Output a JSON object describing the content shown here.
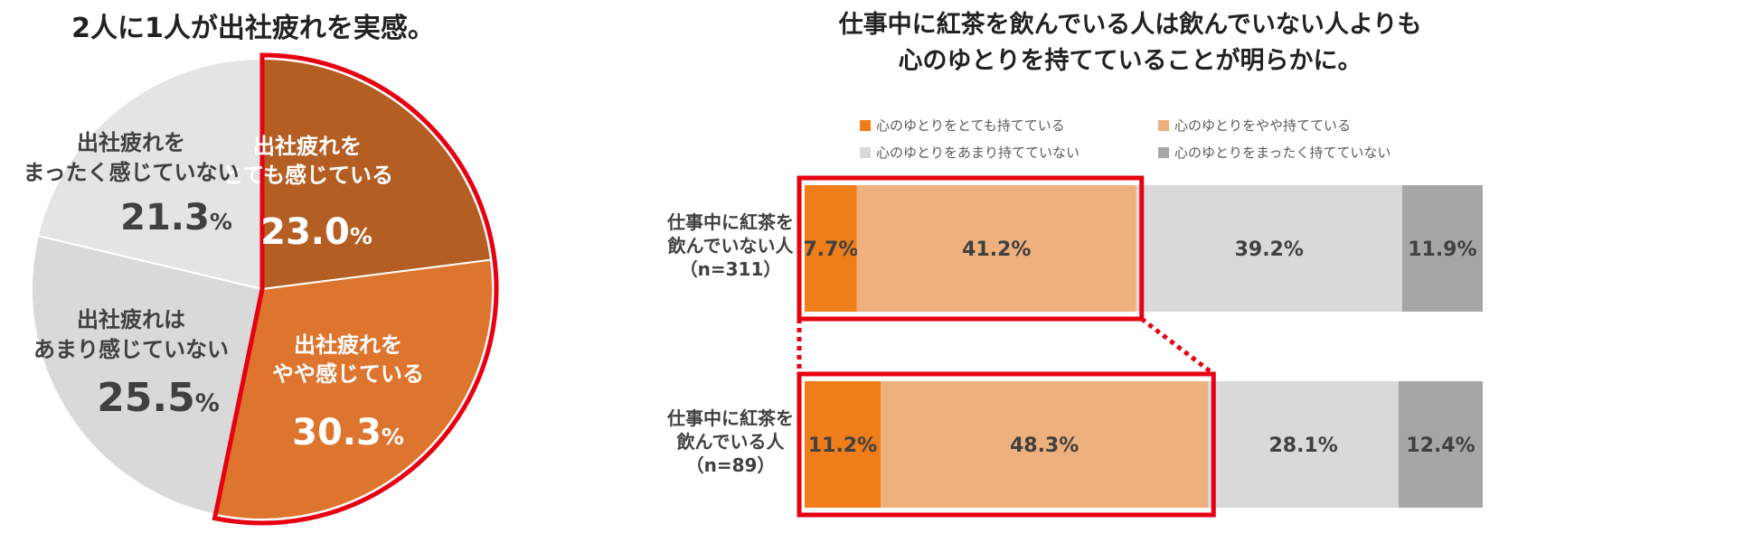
{
  "pie": {
    "title": "2人に1人が出社疲れを実感。",
    "percent_unit": "%"
  },
  "bar": {
    "title_line1": "仕事中に紅茶を飲んでいる人は飲んでいない人よりも",
    "title_line2": "心のゆとりを持てていることが明らかに。"
  },
  "chart_data": [
    {
      "type": "pie",
      "title": "2人に1人が出社疲れを実感。",
      "slices": [
        {
          "label_lines": [
            "出社疲れを",
            "とても感じている"
          ],
          "value": 23.0,
          "color": "#b55e24",
          "highlighted": true
        },
        {
          "label_lines": [
            "出社疲れを",
            "やや感じている"
          ],
          "value": 30.3,
          "color": "#de752e",
          "highlighted": true
        },
        {
          "label_lines": [
            "出社疲れは",
            "あまり感じていない"
          ],
          "value": 25.5,
          "color": "#d9d9d9",
          "highlighted": false
        },
        {
          "label_lines": [
            "出社疲れを",
            "まったく感じていない"
          ],
          "value": 21.3,
          "color": "#e4e4e4",
          "highlighted": false
        }
      ]
    },
    {
      "type": "bar",
      "orientation": "horizontal-stacked-100",
      "title": "仕事中に紅茶を飲んでいる人は飲んでいない人よりも心のゆとりを持てていることが明らかに。",
      "categories": [
        {
          "label_lines": [
            "仕事中に紅茶を",
            "飲んでいない人",
            "（n=311）"
          ]
        },
        {
          "label_lines": [
            "仕事中に紅茶を",
            "飲んでいる人",
            "（n=89）"
          ]
        }
      ],
      "series": [
        {
          "name": "心のゆとりをとても持てている",
          "values": [
            7.7,
            11.2
          ],
          "color": "#ee7d1a"
        },
        {
          "name": "心のゆとりをやや持てている",
          "values": [
            41.2,
            48.3
          ],
          "color": "#eeb07c"
        },
        {
          "name": "心のゆとりをあまり持てていない",
          "values": [
            39.2,
            28.1
          ],
          "color": "#d9d9d9"
        },
        {
          "name": "心のゆとりをまったく持てていない",
          "values": [
            11.9,
            12.4
          ],
          "color": "#a6a6a6"
        }
      ],
      "highlight_color": "#e60012"
    }
  ]
}
